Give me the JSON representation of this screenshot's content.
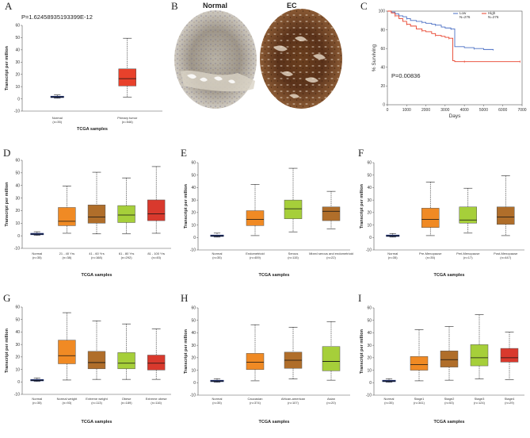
{
  "panels": {
    "A": {
      "letter": "A",
      "pvalue": "P=1.62458935193399E-12",
      "ylabel": "Transcript per million",
      "xlabel": "TCGA samples"
    },
    "B": {
      "letter": "B",
      "normal_label": "Normal",
      "tumor_label": "EC"
    },
    "C": {
      "letter": "C"
    },
    "D": {
      "letter": "D"
    },
    "E": {
      "letter": "E"
    },
    "F": {
      "letter": "F"
    },
    "G": {
      "letter": "G"
    },
    "H": {
      "letter": "H"
    },
    "I": {
      "letter": "I"
    }
  },
  "colors": {
    "blue": "#1a2f7a",
    "red": "#e8412b",
    "orange": "#f08a24",
    "brown": "#b06e2a",
    "green": "#a6cf3a",
    "darkred": "#d9392d",
    "box_stroke": "#333333",
    "survival_low": "#4a6fc4",
    "survival_high": "#e8412b"
  },
  "chart_data": [
    {
      "id": "A",
      "type": "box",
      "ylabel": "Transcript per million",
      "xlabel": "TCGA samples",
      "ylim": [
        -10,
        60
      ],
      "yticks": [
        -10,
        0,
        10,
        20,
        30,
        40,
        50,
        60
      ],
      "categories": [
        "Normal",
        "Primary tumor"
      ],
      "counts": [
        "(n=35)",
        "(n=546)"
      ],
      "boxes": [
        {
          "min": 0.5,
          "q1": 1.0,
          "median": 1.5,
          "q3": 2.2,
          "max": 3.2,
          "color": "blue"
        },
        {
          "min": 1.5,
          "q1": 10.5,
          "median": 16.5,
          "q3": 24.5,
          "max": 49.5,
          "color": "red"
        }
      ],
      "pvalue": "P=1.62458935193399E-12"
    },
    {
      "id": "C",
      "type": "line",
      "ylabel": "% Surviving",
      "xlabel": "Days",
      "xlim": [
        0,
        7000
      ],
      "ylim": [
        0,
        100
      ],
      "xticks": [
        0,
        1000,
        2000,
        3000,
        4000,
        5000,
        6000,
        7000
      ],
      "yticks": [
        0,
        20,
        40,
        60,
        80,
        100
      ],
      "legend": [
        {
          "name": "Low",
          "n": "N=276",
          "color": "survival_low"
        },
        {
          "name": "High",
          "n": "N=276",
          "color": "survival_high"
        }
      ],
      "series": [
        {
          "name": "Low",
          "color": "survival_low",
          "x": [
            0,
            200,
            400,
            600,
            800,
            1000,
            1200,
            1500,
            1800,
            2000,
            2300,
            2500,
            2800,
            3000,
            3300,
            3500,
            4000,
            4500,
            5000,
            5500
          ],
          "y": [
            100,
            99,
            97,
            95,
            94,
            92,
            90,
            89,
            88,
            87,
            86,
            85,
            83,
            82,
            81,
            62,
            61,
            60,
            59,
            58
          ]
        },
        {
          "name": "High",
          "color": "survival_high",
          "x": [
            0,
            200,
            400,
            600,
            800,
            1000,
            1200,
            1500,
            1800,
            2000,
            2300,
            2500,
            2800,
            3000,
            3200,
            3400,
            3500,
            4000,
            5000,
            6000,
            6900
          ],
          "y": [
            100,
            98,
            95,
            92,
            89,
            86,
            84,
            81,
            79,
            78,
            76,
            74,
            73,
            72,
            71,
            47,
            46,
            46,
            46,
            46,
            46
          ]
        }
      ],
      "pvalue": "P=0.00836"
    },
    {
      "id": "D",
      "type": "box",
      "ylabel": "Transcript per million",
      "xlabel": "TCGA samples",
      "ylim": [
        -10,
        60
      ],
      "yticks": [
        -10,
        0,
        10,
        20,
        30,
        40,
        50,
        60
      ],
      "categories": [
        "Normal",
        "21 - 40 Yrs",
        "41 - 60 Yrs",
        "61 - 80 Yrs",
        "81 - 100 Yrs"
      ],
      "counts": [
        "(n=35)",
        "(n=38)",
        "(n=168)",
        "(n=292)",
        "(n=45)"
      ],
      "boxes": [
        {
          "min": 0.3,
          "q1": 0.8,
          "median": 1.3,
          "q3": 2.0,
          "max": 3.2,
          "color": "blue"
        },
        {
          "min": 2.0,
          "q1": 8.0,
          "median": 11.5,
          "q3": 22.5,
          "max": 39.5,
          "color": "orange"
        },
        {
          "min": 1.5,
          "q1": 10.0,
          "median": 15.0,
          "q3": 24.5,
          "max": 50.5,
          "color": "brown"
        },
        {
          "min": 1.5,
          "q1": 10.5,
          "median": 16.5,
          "q3": 24.0,
          "max": 46.0,
          "color": "green"
        },
        {
          "min": 2.0,
          "q1": 12.0,
          "median": 17.5,
          "q3": 28.5,
          "max": 55.0,
          "color": "darkred"
        }
      ]
    },
    {
      "id": "E",
      "type": "box",
      "ylabel": "Transcript per million",
      "xlabel": "TCGA samples",
      "ylim": [
        -10,
        60
      ],
      "yticks": [
        -10,
        0,
        10,
        20,
        30,
        40,
        50,
        60
      ],
      "categories": [
        "Normal",
        "Endometrioid",
        "Serous",
        "Mixed serous and endometrioid"
      ],
      "counts": [
        "(n=35)",
        "(n=409)",
        "(n=115)",
        "(n=22)"
      ],
      "boxes": [
        {
          "min": 0.3,
          "q1": 0.8,
          "median": 1.3,
          "q3": 2.0,
          "max": 3.5,
          "color": "blue"
        },
        {
          "min": 1.5,
          "q1": 9.5,
          "median": 14.5,
          "q3": 21.5,
          "max": 42.5,
          "color": "orange"
        },
        {
          "min": 4.5,
          "q1": 15.0,
          "median": 23.0,
          "q3": 30.0,
          "max": 55.5,
          "color": "green"
        },
        {
          "min": 7.0,
          "q1": 13.5,
          "median": 21.0,
          "q3": 24.5,
          "max": 37.0,
          "color": "brown"
        }
      ]
    },
    {
      "id": "F",
      "type": "box",
      "ylabel": "Transcript per million",
      "xlabel": "TCGA samples",
      "ylim": [
        -10,
        60
      ],
      "yticks": [
        -10,
        0,
        10,
        20,
        30,
        40,
        50,
        60
      ],
      "categories": [
        "Normal",
        "Pre-Menopause",
        "Peri-Menopause",
        "Post-Menopause"
      ],
      "counts": [
        "(n=35)",
        "(n=35)",
        "(n=17)",
        "(n=447)"
      ],
      "boxes": [
        {
          "min": 0.3,
          "q1": 0.8,
          "median": 1.3,
          "q3": 2.0,
          "max": 3.2,
          "color": "blue"
        },
        {
          "min": 1.5,
          "q1": 8.0,
          "median": 14.5,
          "q3": 23.5,
          "max": 44.5,
          "color": "orange"
        },
        {
          "min": 3.5,
          "q1": 11.5,
          "median": 14.0,
          "q3": 24.5,
          "max": 39.5,
          "color": "green"
        },
        {
          "min": 1.5,
          "q1": 10.5,
          "median": 16.5,
          "q3": 24.5,
          "max": 49.5,
          "color": "brown"
        }
      ]
    },
    {
      "id": "G",
      "type": "box",
      "ylabel": "Transcript per million",
      "xlabel": "TCGA samples",
      "ylim": [
        -10,
        60
      ],
      "yticks": [
        -10,
        0,
        10,
        20,
        30,
        40,
        50,
        60
      ],
      "categories": [
        "Normal",
        "Normal weight",
        "Extreme weight",
        "Obese",
        "Extreme obese"
      ],
      "counts": [
        "(n=35)",
        "(n=93)",
        "(n=113)",
        "(n=189)",
        "(n=116)"
      ],
      "boxes": [
        {
          "min": 0.3,
          "q1": 0.8,
          "median": 1.3,
          "q3": 2.0,
          "max": 3.2,
          "color": "blue"
        },
        {
          "min": 1.5,
          "q1": 14.5,
          "median": 21.0,
          "q3": 33.5,
          "max": 55.5,
          "color": "orange"
        },
        {
          "min": 2.0,
          "q1": 10.5,
          "median": 15.5,
          "q3": 24.5,
          "max": 49.0,
          "color": "brown"
        },
        {
          "min": 2.0,
          "q1": 10.5,
          "median": 15.0,
          "q3": 23.5,
          "max": 46.5,
          "color": "green"
        },
        {
          "min": 2.0,
          "q1": 9.5,
          "median": 15.0,
          "q3": 21.5,
          "max": 42.5,
          "color": "darkred"
        }
      ]
    },
    {
      "id": "H",
      "type": "box",
      "ylabel": "Transcript per million",
      "xlabel": "TCGA samples",
      "ylim": [
        -10,
        60
      ],
      "yticks": [
        -10,
        0,
        10,
        20,
        30,
        40,
        50,
        60
      ],
      "categories": [
        "Normal",
        "Caucasian",
        "African-american",
        "Asian"
      ],
      "counts": [
        "(n=35)",
        "(n=374)",
        "(n=107)",
        "(n=20)"
      ],
      "boxes": [
        {
          "min": 0.3,
          "q1": 0.8,
          "median": 1.3,
          "q3": 2.0,
          "max": 3.2,
          "color": "blue"
        },
        {
          "min": 1.5,
          "q1": 10.5,
          "median": 16.5,
          "q3": 23.5,
          "max": 46.5,
          "color": "orange"
        },
        {
          "min": 3.0,
          "q1": 11.5,
          "median": 18.0,
          "q3": 24.5,
          "max": 44.5,
          "color": "brown"
        },
        {
          "min": 2.0,
          "q1": 9.5,
          "median": 17.0,
          "q3": 29.0,
          "max": 49.0,
          "color": "green"
        }
      ]
    },
    {
      "id": "I",
      "type": "box",
      "ylabel": "Transcript per million",
      "xlabel": "TCGA samples",
      "ylim": [
        -10,
        60
      ],
      "yticks": [
        -10,
        0,
        10,
        20,
        30,
        40,
        50,
        60
      ],
      "categories": [
        "Normal",
        "Stage1",
        "Stage2",
        "Stage3",
        "Stage4"
      ],
      "counts": [
        "(n=35)",
        "(n=341)",
        "(n=53)",
        "(n=124)",
        "(n=29)"
      ],
      "boxes": [
        {
          "min": 0.3,
          "q1": 0.8,
          "median": 1.3,
          "q3": 2.0,
          "max": 3.2,
          "color": "blue"
        },
        {
          "min": 1.5,
          "q1": 10.0,
          "median": 14.5,
          "q3": 21.0,
          "max": 42.5,
          "color": "orange"
        },
        {
          "min": 2.0,
          "q1": 12.5,
          "median": 18.5,
          "q3": 25.5,
          "max": 45.0,
          "color": "brown"
        },
        {
          "min": 3.0,
          "q1": 13.5,
          "median": 20.0,
          "q3": 30.5,
          "max": 54.5,
          "color": "green"
        },
        {
          "min": 2.5,
          "q1": 16.5,
          "median": 20.0,
          "q3": 27.5,
          "max": 40.5,
          "color": "darkred"
        }
      ]
    }
  ]
}
